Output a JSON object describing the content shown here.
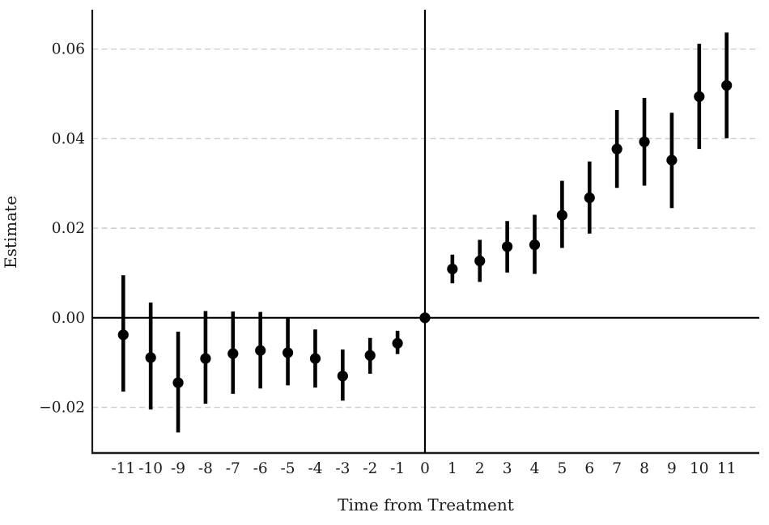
{
  "chart_data": {
    "type": "scatter",
    "subtype": "event-study-coefficient-plot",
    "title": "",
    "xlabel": "Time from Treatment",
    "ylabel": "Estimate",
    "xlim": [
      -12.13,
      12.19
    ],
    "ylim": [
      -0.0302,
      0.0688
    ],
    "grid": "horizontal dashed gridlines at y ticks",
    "legend": "none",
    "reference_lines": {
      "vertical_at_x": 0,
      "horizontal_at_y": 0
    },
    "xticks": [
      -11,
      -10,
      -9,
      -8,
      -7,
      -6,
      -5,
      -4,
      -3,
      -2,
      -1,
      0,
      1,
      2,
      3,
      4,
      5,
      6,
      7,
      8,
      9,
      10,
      11
    ],
    "xtick_labels": [
      "-11",
      "-10",
      "-9",
      "-8",
      "-7",
      "-6",
      "-5",
      "-4",
      "-3",
      "-2",
      "-1",
      "0",
      "1",
      "2",
      "3",
      "4",
      "5",
      "6",
      "7",
      "8",
      "9",
      "10",
      "11"
    ],
    "yticks": [
      -0.02,
      0.0,
      0.02,
      0.04,
      0.06
    ],
    "ytick_labels": [
      "−0.02",
      "0.00",
      "0.02",
      "0.04",
      "0.06"
    ],
    "series": [
      {
        "name": "estimate-with-95ci",
        "points": [
          {
            "x": -11,
            "y": -0.0038,
            "ci_low": -0.0165,
            "ci_high": 0.0095
          },
          {
            "x": -10,
            "y": -0.0089,
            "ci_low": -0.0205,
            "ci_high": 0.0034
          },
          {
            "x": -9,
            "y": -0.0145,
            "ci_low": -0.0256,
            "ci_high": -0.0031
          },
          {
            "x": -8,
            "y": -0.0091,
            "ci_low": -0.0192,
            "ci_high": 0.0015
          },
          {
            "x": -7,
            "y": -0.008,
            "ci_low": -0.017,
            "ci_high": 0.0014
          },
          {
            "x": -6,
            "y": -0.0073,
            "ci_low": -0.0158,
            "ci_high": 0.0013
          },
          {
            "x": -5,
            "y": -0.0078,
            "ci_low": -0.0151,
            "ci_high": 0.0001
          },
          {
            "x": -4,
            "y": -0.0091,
            "ci_low": -0.0156,
            "ci_high": -0.0026
          },
          {
            "x": -3,
            "y": -0.013,
            "ci_low": -0.0185,
            "ci_high": -0.0071
          },
          {
            "x": -2,
            "y": -0.0084,
            "ci_low": -0.0125,
            "ci_high": -0.0045
          },
          {
            "x": -1,
            "y": -0.0057,
            "ci_low": -0.0081,
            "ci_high": -0.0029
          },
          {
            "x": 0,
            "y": 0.0,
            "ci_low": 0.0,
            "ci_high": 0.0
          },
          {
            "x": 1,
            "y": 0.0109,
            "ci_low": 0.0077,
            "ci_high": 0.0141
          },
          {
            "x": 2,
            "y": 0.0127,
            "ci_low": 0.008,
            "ci_high": 0.0174
          },
          {
            "x": 3,
            "y": 0.0159,
            "ci_low": 0.0101,
            "ci_high": 0.0216
          },
          {
            "x": 4,
            "y": 0.0163,
            "ci_low": 0.0098,
            "ci_high": 0.023
          },
          {
            "x": 5,
            "y": 0.0229,
            "ci_low": 0.0156,
            "ci_high": 0.0306
          },
          {
            "x": 6,
            "y": 0.0268,
            "ci_low": 0.0188,
            "ci_high": 0.0349
          },
          {
            "x": 7,
            "y": 0.0377,
            "ci_low": 0.029,
            "ci_high": 0.0464
          },
          {
            "x": 8,
            "y": 0.0393,
            "ci_low": 0.0295,
            "ci_high": 0.0491
          },
          {
            "x": 9,
            "y": 0.0352,
            "ci_low": 0.0245,
            "ci_high": 0.0458
          },
          {
            "x": 10,
            "y": 0.0494,
            "ci_low": 0.0377,
            "ci_high": 0.0612
          },
          {
            "x": 11,
            "y": 0.0519,
            "ci_low": 0.0401,
            "ci_high": 0.0637
          }
        ]
      }
    ],
    "colors": {
      "point": "#000000",
      "error_bar": "#000000",
      "spine": "#1a1a1a",
      "reference_line": "#000000",
      "gridline": "#cccccc",
      "text": "#1c1c1c",
      "background": "#ffffff"
    }
  }
}
